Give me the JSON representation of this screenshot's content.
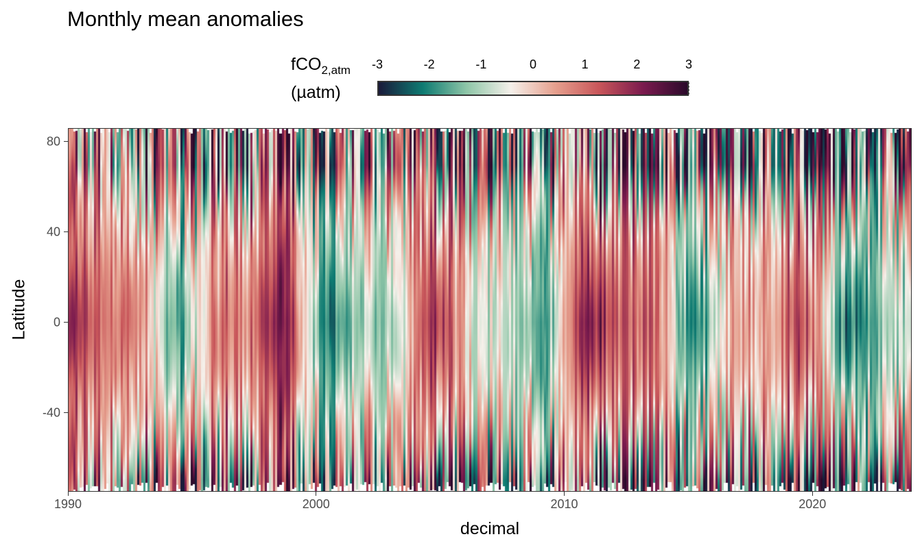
{
  "title": "Monthly mean anomalies",
  "legend": {
    "title_main": "fCO",
    "title_sub": "2,atm",
    "title_unit": "(µatm)",
    "tick_labels": [
      "-3",
      "-2",
      "-1",
      "0",
      "1",
      "2",
      "3"
    ],
    "range": [
      -3,
      3
    ],
    "colors": [
      "#1a1a3a",
      "#0e7b72",
      "#8fc6a8",
      "#f5f0ea",
      "#e6a08e",
      "#c8565a",
      "#7a1a4e",
      "#2b0a2b"
    ]
  },
  "chart_data": {
    "type": "heatmap",
    "title": "Monthly mean anomalies",
    "xlabel": "decimal",
    "ylabel": "Latitude",
    "x_ticks": [
      "1990",
      "2000",
      "2010",
      "2020"
    ],
    "y_ticks": [
      "80",
      "40",
      "0",
      "-40"
    ],
    "xlim": [
      1990,
      2024
    ],
    "ylim": [
      -75,
      86
    ],
    "color_range": [
      -3,
      3
    ],
    "colorbar_label": "fCO2,atm (µatm)"
  }
}
